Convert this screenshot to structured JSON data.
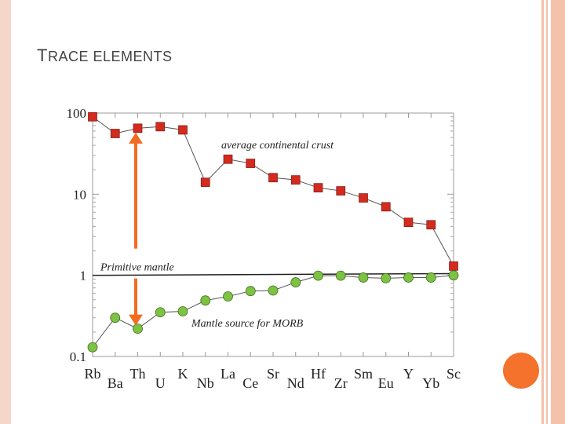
{
  "slide": {
    "title_first": "T",
    "title_rest": "RACE ELEMENTS"
  },
  "colors": {
    "crust_marker": "#d42a1f",
    "morb_marker": "#7dc242",
    "arrow": "#f26b21",
    "border": "#f4c1ab",
    "dot": "#f4722b"
  },
  "chart_data": {
    "type": "scatter",
    "yscale": "log",
    "ylim": [
      0.1,
      100
    ],
    "y_ticks": [
      "100",
      "10",
      "1",
      "0.1"
    ],
    "y_tick_values": [
      100,
      10,
      1,
      0.1
    ],
    "categories": [
      "Rb",
      "Ba",
      "Th",
      "U",
      "K",
      "Nb",
      "La",
      "Ce",
      "Sr",
      "Nd",
      "Hf",
      "Zr",
      "Sm",
      "Eu",
      "Y",
      "Yb",
      "Sc"
    ],
    "series": [
      {
        "name": "average continental crust",
        "marker": "square",
        "values": [
          90,
          56,
          65,
          68,
          62,
          14,
          27,
          24,
          16,
          15,
          12,
          11,
          9,
          7,
          4.5,
          4.2,
          1.3
        ]
      },
      {
        "name": "Mantle source for MORB",
        "marker": "circle",
        "values": [
          0.13,
          0.3,
          0.22,
          0.35,
          0.36,
          0.49,
          0.55,
          0.64,
          0.65,
          0.82,
          0.99,
          0.99,
          0.94,
          0.92,
          0.94,
          0.94,
          1.0
        ]
      }
    ],
    "reference_line": {
      "label": "Primitive mantle",
      "y_start": 1.0,
      "y_end": 1.05
    },
    "annotations": {
      "crust": "average continental crust",
      "morb": "Mantle source for MORB",
      "primitive": "Primitive mantle"
    }
  }
}
